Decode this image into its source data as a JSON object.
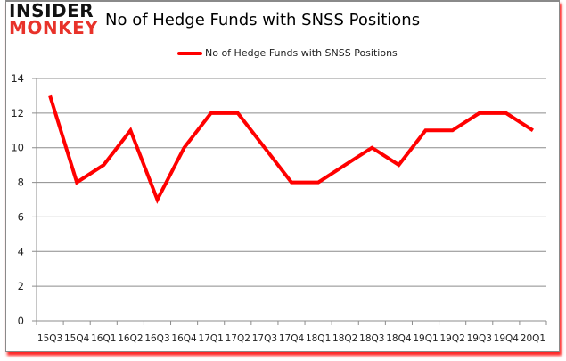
{
  "logo": {
    "line1": "INSIDER",
    "line2": "MONKEY"
  },
  "header": {
    "title": "No of Hedge Funds with SNSS Positions"
  },
  "legend": {
    "label": "No of Hedge Funds with SNSS Positions",
    "color": "#ff0000"
  },
  "chart_data": {
    "type": "line",
    "title": "No of Hedge Funds with SNSS Positions",
    "xlabel": "",
    "ylabel": "",
    "categories": [
      "15Q3",
      "15Q4",
      "16Q1",
      "16Q2",
      "16Q3",
      "16Q4",
      "17Q1",
      "17Q2",
      "17Q3",
      "17Q4",
      "18Q1",
      "18Q2",
      "18Q3",
      "18Q4",
      "19Q1",
      "19Q2",
      "19Q3",
      "19Q4",
      "20Q1"
    ],
    "series": [
      {
        "name": "No of Hedge Funds with SNSS Positions",
        "color": "#ff0000",
        "values": [
          13,
          8,
          9,
          11,
          7,
          10,
          12,
          12,
          10,
          8,
          8,
          9,
          10,
          9,
          11,
          11,
          12,
          12,
          11
        ]
      }
    ],
    "ylim": [
      0,
      14
    ],
    "yticks": [
      0,
      2,
      4,
      6,
      8,
      10,
      12,
      14
    ],
    "grid": true,
    "legend_position": "top"
  }
}
